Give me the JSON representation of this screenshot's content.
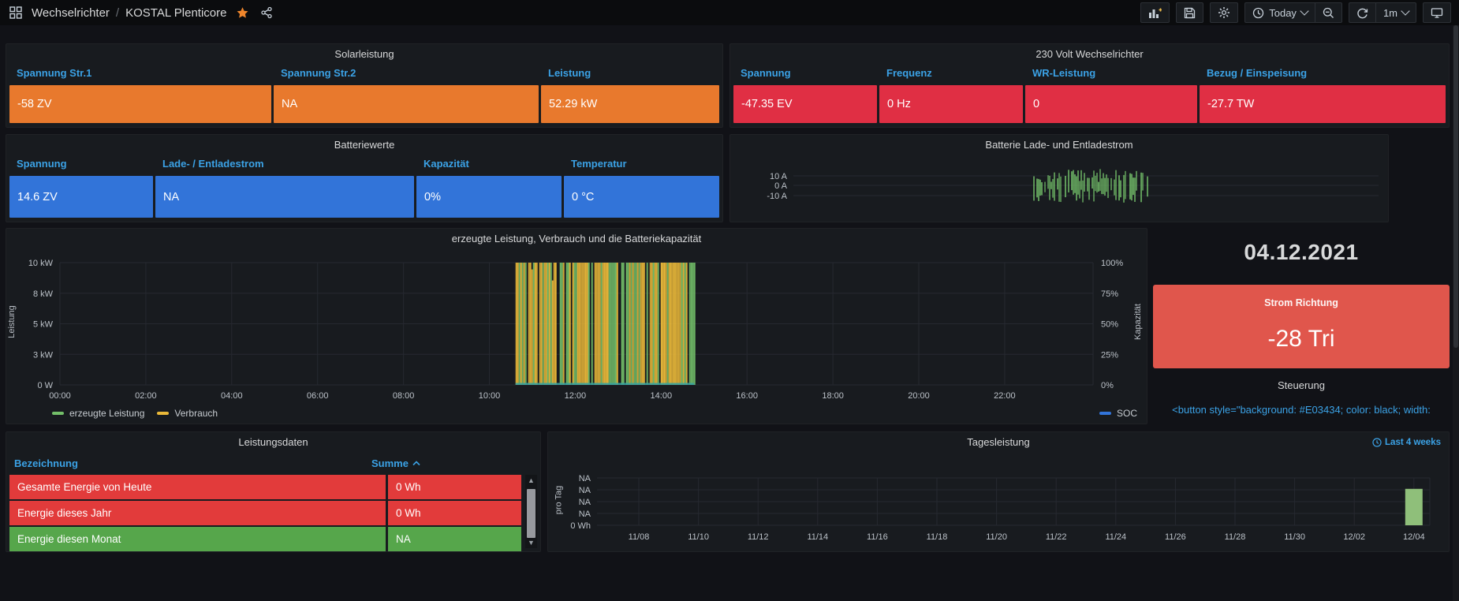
{
  "header": {
    "breadcrumb_section": "Wechselrichter",
    "separator": "/",
    "breadcrumb_page": "KOSTAL Plenticore",
    "time_range_label": "Today",
    "refresh_interval_label": "1m"
  },
  "solar": {
    "title": "Solarleistung",
    "columns": [
      "Spannung Str.1",
      "Spannung Str.2",
      "Leistung"
    ],
    "values": [
      "-58 ZV",
      "NA",
      "52.29 kW"
    ],
    "value_bg": "#E8792D"
  },
  "ac": {
    "title": "230 Volt Wechselrichter",
    "columns": [
      "Spannung",
      "Frequenz",
      "WR-Leistung",
      "Bezug / Einspeisung"
    ],
    "values": [
      "-47.35 EV",
      "0 Hz",
      "0",
      "-27.7 TW"
    ],
    "value_bg": "#E02F44"
  },
  "battery": {
    "title": "Batteriewerte",
    "columns": [
      "Spannung",
      "Lade- / Entladestrom",
      "Kapazität",
      "Temperatur"
    ],
    "values": [
      "14.6 ZV",
      "NA",
      "0%",
      "0 °C"
    ],
    "value_bg": "#3274D9"
  },
  "date_panel": {
    "date": "04.12.2021"
  },
  "strom": {
    "title": "Strom Richtung",
    "value": "-28 Tri",
    "bg": "#E0564C"
  },
  "steuerung": {
    "title": "Steuerung",
    "code": "<button style=\"background: #E03434; color: black; width:"
  },
  "table": {
    "title": "Leistungsdaten",
    "columns": [
      "Bezeichnung",
      "Summe"
    ],
    "rows": [
      {
        "label": "Gesamte Energie von Heute",
        "value": "0 Wh",
        "color": "#E23B3B"
      },
      {
        "label": "Energie dieses Jahr",
        "value": "0 Wh",
        "color": "#E23B3B"
      },
      {
        "label": "Energie diesen Monat",
        "value": "NA",
        "color": "#56A64B"
      }
    ]
  },
  "chart_data": [
    {
      "kind": "battery_stripes",
      "type": "line",
      "title": "Batterie Lade- und Entladestrom",
      "y_ticks": [
        "10 A",
        "0 A",
        "-10 A"
      ],
      "y_values": [
        10,
        0,
        -10
      ],
      "x_range": [
        "00:00",
        "24:00"
      ],
      "active_interval": [
        "10:40",
        "14:50"
      ],
      "active_fraction": [
        0.41,
        0.605
      ],
      "amplitude_a": [
        -15,
        14
      ],
      "series": [
        {
          "name": "Batterie Lade-/Entladestrom",
          "color": "#73BF69"
        }
      ],
      "note": "Lade-/Entladestrom oszilliert zwischen ca. -15 A und +14 A von 10:40 bis 14:50, sonst keine Daten"
    },
    {
      "kind": "power_stripes",
      "type": "line",
      "title": "erzeugte Leistung, Verbrauch und die Batteriekapazität",
      "left_axis": {
        "label": "Leistung",
        "ticks": [
          "10 kW",
          "8 kW",
          "5 kW",
          "3 kW",
          "0 W"
        ]
      },
      "right_axis": {
        "label": "Kapazität",
        "ticks": [
          "100%",
          "75%",
          "50%",
          "25%",
          "0%"
        ]
      },
      "x_ticks": [
        "00:00",
        "02:00",
        "04:00",
        "06:00",
        "08:00",
        "10:00",
        "12:00",
        "14:00",
        "16:00",
        "18:00",
        "20:00",
        "22:00"
      ],
      "series": [
        {
          "name": "erzeugte Leistung",
          "color": "#73BF69",
          "legend": "left"
        },
        {
          "name": "Verbrauch",
          "color": "#EAB839",
          "legend": "left"
        },
        {
          "name": "SOC",
          "color": "#3274D9",
          "legend": "right"
        }
      ],
      "active_interval": [
        "10:40",
        "14:50"
      ],
      "active_fraction": [
        0.441,
        0.614
      ],
      "soc_baseline_color": "#38A3A0",
      "note": "Erzeugung und Verbrauch oszillieren zwischen 0 und 10 kW von ca. 10:40 bis 14:50; SOC bleibt bei 0%"
    },
    {
      "kind": "daily_bars",
      "type": "bar",
      "title": "Tagesleistung",
      "region_link": "Last 4 weeks",
      "y_label": "pro Tag",
      "y_ticks": [
        "NA",
        "NA",
        "NA",
        "NA",
        "0 Wh"
      ],
      "x_ticks": [
        "11/08",
        "11/10",
        "11/12",
        "11/14",
        "11/16",
        "11/18",
        "11/20",
        "11/22",
        "11/24",
        "11/26",
        "11/28",
        "11/30",
        "12/02",
        "12/04"
      ],
      "bars": [
        {
          "x": "12/04",
          "height_fraction": 0.77,
          "color": "#8FBF7A"
        }
      ]
    }
  ]
}
